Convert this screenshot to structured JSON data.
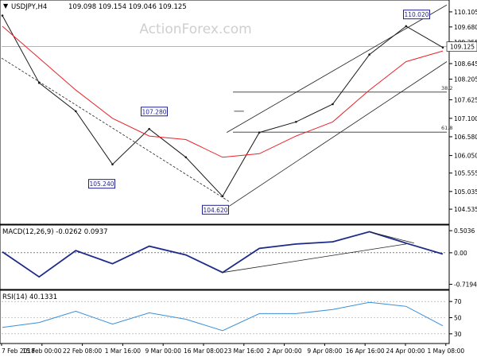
{
  "chart_data": [
    {
      "type": "line",
      "instrument": "USDJPY",
      "timeframe": "H4",
      "header": {
        "title": "USDJPY,H4",
        "ohlc": "109.098 109.154 109.046 109.125"
      },
      "watermark": "ActionForex.com",
      "ylim": [
        104.2,
        110.35
      ],
      "y_ticks": [
        "110.105",
        "109.680",
        "109.255",
        "108.645",
        "108.205",
        "107.625",
        "107.100",
        "106.580",
        "106.050",
        "105.555",
        "105.035",
        "104.535"
      ],
      "x_ticks": [
        "7 Feb 2018",
        "15 Feb 00:00",
        "22 Feb 08:00",
        "1 Mar 16:00",
        "9 Mar 00:00",
        "16 Mar 08:00",
        "23 Mar 16:00",
        "2 Apr 00:00",
        "9 Apr 08:00",
        "16 Apr 16:00",
        "24 Apr 00:00",
        "1 May 08:00"
      ],
      "current_price": {
        "value": 109.125,
        "label": "109.125"
      },
      "level_labels": [
        {
          "text": "107.280",
          "price": 107.28,
          "at": "9 Mar 00:00"
        },
        {
          "text": "105.240",
          "price": 105.24,
          "at": "1 Mar 16:00"
        },
        {
          "text": "104.620",
          "price": 104.62,
          "at": "23 Mar 16:00"
        },
        {
          "text": "110.020",
          "price": 110.02,
          "at": "1 May 08:00"
        }
      ],
      "fib_levels": [
        {
          "label": "38.2",
          "price": 107.84
        },
        {
          "label": "61.8",
          "price": 106.71
        }
      ],
      "colors": {
        "price": "#1a1a1a",
        "moving_average": "#e8232a",
        "trendline": "#222222",
        "label_box": "#1e1e8c"
      },
      "series": [
        {
          "name": "",
          "x": [
            "7 Feb 2018",
            "15 Feb 00:00",
            "22 Feb 08:00",
            "1 Mar 16:00",
            "9 Mar 00:00",
            "16 Mar 08:00",
            "23 Mar 16:00",
            "2 Apr 00:00",
            "9 Apr 08:00",
            "16 Apr 16:00",
            "24 Apr 00:00",
            "1 May 08:00",
            "3 May 00:00"
          ],
          "values": [
            110.0,
            108.1,
            107.3,
            105.8,
            106.8,
            106.0,
            104.9,
            106.7,
            107.0,
            107.5,
            108.9,
            109.7,
            109.1
          ]
        },
        {
          "name": "",
          "x": [
            "7 Feb 2018",
            "15 Feb 00:00",
            "22 Feb 08:00",
            "1 Mar 16:00",
            "9 Mar 00:00",
            "16 Mar 08:00",
            "23 Mar 16:00",
            "2 Apr 00:00",
            "9 Apr 08:00",
            "16 Apr 16:00",
            "24 Apr 00:00",
            "1 May 08:00",
            "3 May 00:00"
          ],
          "values": [
            109.7,
            108.8,
            107.9,
            107.1,
            106.6,
            106.5,
            106.0,
            106.1,
            106.6,
            107.0,
            107.9,
            108.7,
            109.0
          ]
        }
      ]
    },
    {
      "type": "line",
      "title": "MACD(12,26,9) -0.0262 0.0937",
      "ylim": [
        -0.8,
        0.56
      ],
      "y_ticks": [
        "0.5036",
        "0.00",
        "-0.7194"
      ],
      "series": [
        {
          "name": "",
          "x": [
            "7 Feb 2018",
            "15 Feb 00:00",
            "22 Feb 08:00",
            "1 Mar 16:00",
            "9 Mar 00:00",
            "16 Mar 08:00",
            "23 Mar 16:00",
            "2 Apr 00:00",
            "9 Apr 08:00",
            "16 Apr 16:00",
            "24 Apr 00:00",
            "1 May 08:00",
            "3 May 00:00"
          ],
          "values": [
            0.02,
            -0.55,
            0.05,
            -0.25,
            0.15,
            -0.05,
            -0.45,
            0.1,
            0.2,
            0.25,
            0.48,
            0.22,
            -0.03
          ]
        }
      ]
    },
    {
      "type": "line",
      "title": "RSI(14) 40.1331",
      "ylim": [
        20,
        80
      ],
      "y_ticks": [
        "70",
        "50",
        "30"
      ],
      "series": [
        {
          "name": "",
          "x": [
            "7 Feb 2018",
            "15 Feb 00:00",
            "22 Feb 08:00",
            "1 Mar 16:00",
            "9 Mar 00:00",
            "16 Mar 08:00",
            "23 Mar 16:00",
            "2 Apr 00:00",
            "9 Apr 08:00",
            "16 Apr 16:00",
            "24 Apr 00:00",
            "1 May 08:00",
            "3 May 00:00"
          ],
          "values": [
            38,
            44,
            58,
            42,
            56,
            48,
            34,
            55,
            55,
            60,
            69,
            64,
            40
          ]
        }
      ]
    }
  ]
}
